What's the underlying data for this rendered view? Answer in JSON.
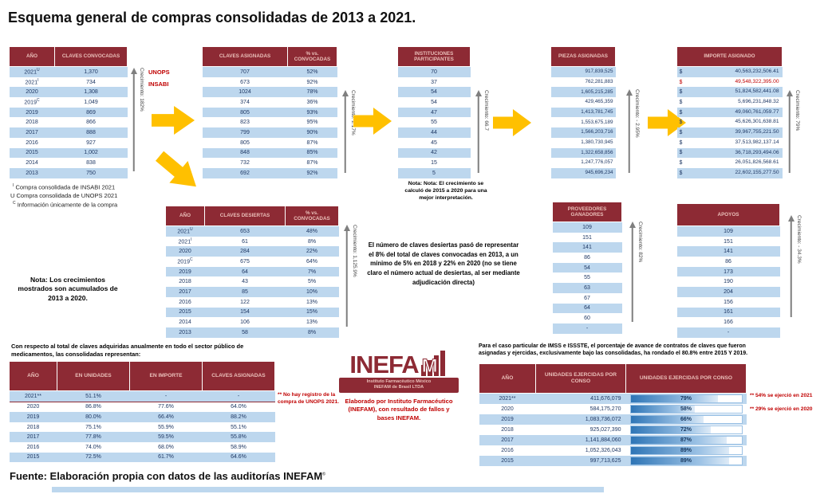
{
  "title": "Esquema general de compras consolidadas de 2013 a 2021.",
  "footer": "Fuente: Elaboración propia con datos de las auditorías INEFAM^©",
  "labels": {
    "unops": "UNOPS",
    "insabi": "INSABI"
  },
  "colors": {
    "header_maroon": "#8D2A34",
    "row_blue": "#BDD7EE",
    "accent_red": "#C00000",
    "arrow_yellow": "#FFC000",
    "body_blue": "#1F3864"
  },
  "arrows": {
    "convocadas": "Crecimiento: 182%",
    "asignadas": "Crecimiento: 2.17%",
    "instituciones": "Crecimiento: 66.7",
    "piezas": "Crecimiento: - 2.95%",
    "importe": "Crecimiento: 79%",
    "desiertas": "Crecimiento: 1,125.9%",
    "proveedores": "Crecimiento: 82%",
    "apoyos": "Crecimiento: - 34.3%"
  },
  "footnotes": [
    "^I Compra consolidada de INSABI 2021",
    "U Compra consolidada de UNOPS 2021",
    "^C Información únicamente de la compra"
  ],
  "notes": {
    "left": "Nota: Los crecimientos mostrados son acumulados de 2013 a 2020.",
    "instituciones": "Nota: Nota: El crecimiento se calculó de 2015 a 2020 para una mejor interpretación.",
    "desiertas": "El número de claves desiertas pasó de representar el 8% del total de claves convocadas en 2013, a un mínimo de 5% en 2018 y 22% en 2020 (no se tiene claro el número actual de desiertas, al ser mediante adjudicación directa)",
    "no_unops": "** No hay registro de la compra de UNOPS 2021.",
    "ejercio_2021": "** 54% se ejerció en 2021",
    "ejercio_2020": "** 29% se ejerció en 2020"
  },
  "intros": {
    "sector": "Con respecto al total de claves adquiridas anualmente en todo el sector público de medicamentos, las consolidadas representan:",
    "imss": "Para el caso particular de IMSS e ISSSTE, el porcentaje de avance de contratos de claves que fueron asignadas y ejercidas, exclusivamente bajo las consolidadas, ha rondado el 80.8% entre 2015 Y 2019."
  },
  "logo": {
    "text_part1": "INEFA",
    "text_part2": "M",
    "ribbon_line1": "Instituto Farmacéutico México",
    "ribbon_line2": "INEFAM de Brasil LTDA",
    "caption": "Elaborado por Instituto Farmacéutico (INEFAM), con resultado de fallos y bases INEFAM."
  },
  "tables": {
    "convocadas": {
      "headers": [
        "AÑO",
        "CLAVES CONVOCADAS"
      ],
      "rows": [
        [
          "2021^U",
          "1,370"
        ],
        [
          "2021^I",
          "734"
        ],
        [
          "2020",
          "1,308"
        ],
        [
          "2019^C",
          "1,049"
        ],
        [
          "2019",
          "869"
        ],
        [
          "2018",
          "866"
        ],
        [
          "2017",
          "888"
        ],
        [
          "2016",
          "927"
        ],
        [
          "2015",
          "1,002"
        ],
        [
          "2014",
          "838"
        ],
        [
          "2013",
          "750"
        ]
      ]
    },
    "asignadas": {
      "headers": [
        "CLAVES ASIGNADAS",
        "% vs. CONVOCADAS"
      ],
      "rows": [
        [
          "707",
          "52%"
        ],
        [
          "673",
          "92%"
        ],
        [
          "1024",
          "78%"
        ],
        [
          "374",
          "36%"
        ],
        [
          "805",
          "93%"
        ],
        [
          "823",
          "95%"
        ],
        [
          "799",
          "90%"
        ],
        [
          "805",
          "87%"
        ],
        [
          "848",
          "85%"
        ],
        [
          "732",
          "87%"
        ],
        [
          "692",
          "92%"
        ]
      ]
    },
    "instituciones": {
      "headers": [
        "INSTITUCIONES PARTICIPANTES"
      ],
      "rows": [
        [
          "70"
        ],
        [
          "37"
        ],
        [
          "54"
        ],
        [
          "54"
        ],
        [
          "47"
        ],
        [
          "55"
        ],
        [
          "44"
        ],
        [
          "45"
        ],
        [
          "42"
        ],
        [
          "15"
        ],
        [
          "5"
        ]
      ]
    },
    "piezas": {
      "headers": [
        "PIEZAS ASIGNADAS"
      ],
      "rows": [
        [
          "917,839,525"
        ],
        [
          "762,281,883"
        ],
        [
          "1,605,215,285"
        ],
        [
          "429,465,359"
        ],
        [
          "1,413,781,745"
        ],
        [
          "1,553,675,189"
        ],
        [
          "1,566,203,716"
        ],
        [
          "1,380,730,945"
        ],
        [
          "1,322,658,856"
        ],
        [
          "1,247,776,057"
        ],
        [
          "945,696,234"
        ]
      ]
    },
    "importe": {
      "headers": [
        "IMPORTE ASIGNADO"
      ],
      "red_rows": [
        1
      ],
      "rows": [
        [
          "$",
          "40,563,232,506.41"
        ],
        [
          "$",
          "49,548,322,395.00"
        ],
        [
          "$",
          "51,824,582,441.08"
        ],
        [
          "$",
          "5,696,231,848.32"
        ],
        [
          "$",
          "49,060,761,059.77"
        ],
        [
          "$",
          "45,626,301,638.81"
        ],
        [
          "$",
          "39,967,755,221.50"
        ],
        [
          "$",
          "37,513,982,137.14"
        ],
        [
          "$",
          "36,718,293,494.06"
        ],
        [
          "$",
          "26,051,826,568.61"
        ],
        [
          "$",
          "22,602,155,277.50"
        ]
      ]
    },
    "desiertas": {
      "headers": [
        "AÑO",
        "CLAVES DESIERTAS",
        "% vs. CONVOCADAS"
      ],
      "rows": [
        [
          "2021^U",
          "653",
          "48%"
        ],
        [
          "2021^I",
          "61",
          "8%"
        ],
        [
          "2020",
          "284",
          "22%"
        ],
        [
          "2019^C",
          "675",
          "64%"
        ],
        [
          "2019",
          "64",
          "7%"
        ],
        [
          "2018",
          "43",
          "5%"
        ],
        [
          "2017",
          "85",
          "10%"
        ],
        [
          "2016",
          "122",
          "13%"
        ],
        [
          "2015",
          "154",
          "15%"
        ],
        [
          "2014",
          "106",
          "13%"
        ],
        [
          "2013",
          "58",
          "8%"
        ]
      ]
    },
    "proveedores": {
      "headers": [
        "PROVEEDORES GANADORES"
      ],
      "rows": [
        [
          "109"
        ],
        [
          "151"
        ],
        [
          "141"
        ],
        [
          "86"
        ],
        [
          "54"
        ],
        [
          "55"
        ],
        [
          "63"
        ],
        [
          "67"
        ],
        [
          "64"
        ],
        [
          "60"
        ],
        [
          "-"
        ]
      ]
    },
    "apoyos": {
      "headers": [
        "APOYOS"
      ],
      "rows": [
        [
          "109"
        ],
        [
          "151"
        ],
        [
          "141"
        ],
        [
          "86"
        ],
        [
          "173"
        ],
        [
          "190"
        ],
        [
          "204"
        ],
        [
          "156"
        ],
        [
          "161"
        ],
        [
          "166"
        ],
        [
          "-"
        ]
      ]
    },
    "sector": {
      "headers": [
        "AÑO",
        "EN UNIDADES",
        "EN IMPORTE",
        "CLAVES ASIGNADAS"
      ],
      "rows": [
        [
          "2021**",
          "51.1%",
          "-",
          "-"
        ],
        [
          "2020",
          "86.8%",
          "77.6%",
          "64.0%"
        ],
        [
          "2019",
          "80.0%",
          "66.4%",
          "88.2%"
        ],
        [
          "2018",
          "75.1%",
          "55.9%",
          "55.1%"
        ],
        [
          "2017",
          "77.8%",
          "59.5%",
          "55.8%"
        ],
        [
          "2016",
          "74.0%",
          "68.0%",
          "58.9%"
        ],
        [
          "2015",
          "72.5%",
          "61.7%",
          "64.6%"
        ]
      ]
    },
    "imss": {
      "headers": [
        "AÑO",
        "UNIDADES EJERCIDAS POR CONSO",
        "UNIDADES EJERCIDAS POR CONSO"
      ],
      "bar_col": 2,
      "rows": [
        [
          "2021**",
          "411,676,079",
          "79%"
        ],
        [
          "2020",
          "584,175,270",
          "58%"
        ],
        [
          "2019",
          "1,083,736,072",
          "66%"
        ],
        [
          "2018",
          "925,027,390",
          "72%"
        ],
        [
          "2017",
          "1,141,884,060",
          "87%"
        ],
        [
          "2016",
          "1,052,326,043",
          "89%"
        ],
        [
          "2015",
          "997,713,625",
          "89%"
        ]
      ]
    }
  }
}
